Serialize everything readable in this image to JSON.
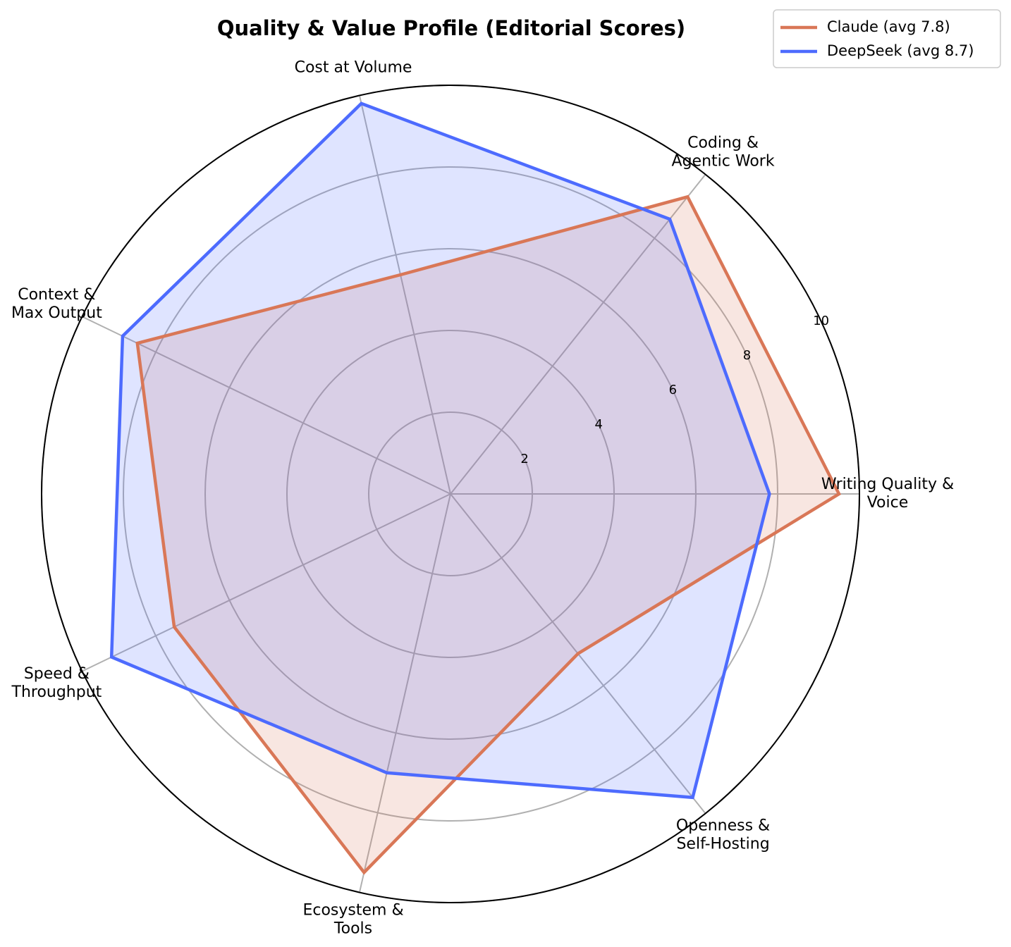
{
  "chart_data": {
    "type": "radar",
    "title": "Quality & Value Profile (Editorial Scores)",
    "categories": [
      "Writing Quality &\nVoice",
      "Coding &\nAgentic Work",
      "Cost at Volume",
      "Context &\nMax Output",
      "Speed &\nThroughput",
      "Ecosystem &\nTools",
      "Openness &\nSelf-Hosting"
    ],
    "series": [
      {
        "name": "Claude (avg 7.8)",
        "color": "#d97757",
        "values": [
          9.5,
          9.3,
          5.5,
          8.5,
          7.5,
          9.5,
          5.0
        ]
      },
      {
        "name": "DeepSeek (avg 8.7)",
        "color": "#4d6bfe",
        "values": [
          7.8,
          8.6,
          9.8,
          8.9,
          9.2,
          7.0,
          9.5
        ]
      }
    ],
    "rlim": [
      0,
      10
    ],
    "rticks": [
      2,
      4,
      6,
      8,
      10
    ],
    "grid": true,
    "legend": "upper right"
  }
}
